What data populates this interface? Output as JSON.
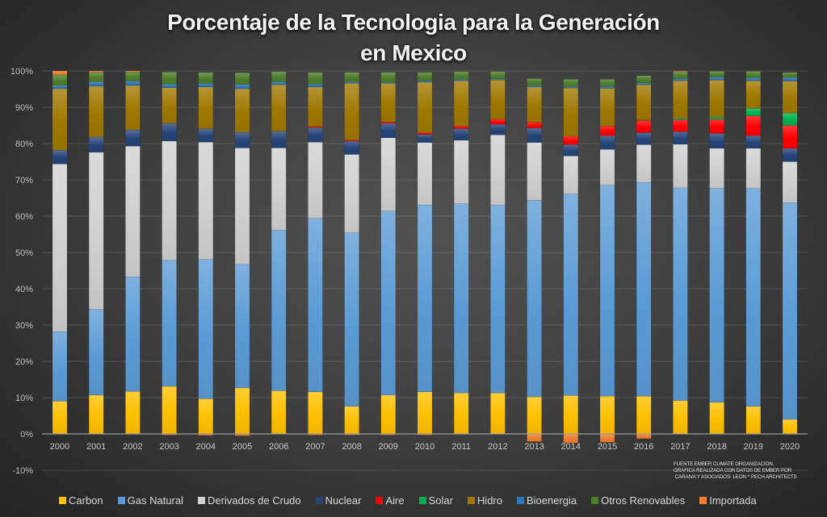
{
  "title": {
    "line1": "Porcentaje de la Tecnologia para la Generación",
    "line2": "en Mexico"
  },
  "chart_data": {
    "type": "bar",
    "stacking": "percent",
    "title": "Porcentaje de la Tecnologia para la Generación en Mexico",
    "xlabel": "",
    "ylabel": "",
    "ylim": [
      -10,
      100
    ],
    "yticks": [
      100,
      90,
      80,
      70,
      60,
      50,
      40,
      30,
      20,
      10,
      0,
      -10
    ],
    "ytick_labels": [
      "100%",
      "90%",
      "80%",
      "70%",
      "60%",
      "50%",
      "40%",
      "30%",
      "20%",
      "10%",
      "0%",
      "-10%"
    ],
    "grid": true,
    "legend": "bottom",
    "categories": [
      "2000",
      "2001",
      "2002",
      "2003",
      "2004",
      "2005",
      "2006",
      "2007",
      "2008",
      "2009",
      "2010",
      "2011",
      "2012",
      "2013",
      "2014",
      "2015",
      "2016",
      "2017",
      "2018",
      "2019",
      "2020"
    ],
    "series": [
      {
        "name": "Carbon",
        "color": "#FFC000",
        "values": [
          9.0,
          10.7,
          11.7,
          13.1,
          9.7,
          12.7,
          11.9,
          11.6,
          7.6,
          10.7,
          11.6,
          11.3,
          11.3,
          10.2,
          10.6,
          10.4,
          10.4,
          9.2,
          8.7,
          7.6,
          4.0
        ]
      },
      {
        "name": "Gas Natural",
        "color": "#5B9BD5",
        "values": [
          19.2,
          23.6,
          31.6,
          34.8,
          38.4,
          34.0,
          44.3,
          47.8,
          47.8,
          50.7,
          51.5,
          52.1,
          51.8,
          54.2,
          55.5,
          58.1,
          58.9,
          58.6,
          59.0,
          60.0,
          59.7
        ]
      },
      {
        "name": "Derivados de Crudo",
        "color": "#D0D0D0",
        "values": [
          46.2,
          43.3,
          36.0,
          32.8,
          32.3,
          32.1,
          22.6,
          21.0,
          21.6,
          20.2,
          17.2,
          17.5,
          19.3,
          15.9,
          10.5,
          9.9,
          10.4,
          12.0,
          11.0,
          11.1,
          11.3
        ]
      },
      {
        "name": "Nuclear",
        "color": "#264478",
        "values": [
          3.8,
          4.2,
          4.5,
          4.9,
          3.7,
          4.3,
          4.6,
          4.0,
          3.7,
          4.0,
          2.2,
          3.2,
          2.9,
          4.0,
          3.1,
          3.8,
          3.3,
          3.5,
          4.1,
          3.5,
          3.7
        ]
      },
      {
        "name": "Aire",
        "color": "#FF0000",
        "values": [
          0,
          0,
          0,
          0,
          0,
          0,
          0,
          0.3,
          0.3,
          0.4,
          0.5,
          0.7,
          1.4,
          1.6,
          2.3,
          2.6,
          3.4,
          3.3,
          3.9,
          5.4,
          6.3
        ]
      },
      {
        "name": "Solar",
        "color": "#00B050",
        "values": [
          0,
          0,
          0,
          0,
          0,
          0,
          0,
          0,
          0,
          0,
          0,
          0,
          0,
          0,
          0,
          0,
          0.1,
          0.4,
          0.6,
          2.1,
          3.4
        ]
      },
      {
        "name": "Hidro",
        "color": "#A07800",
        "values": [
          16.9,
          14.0,
          12.2,
          9.8,
          11.5,
          12.0,
          12.8,
          10.9,
          15.6,
          10.6,
          13.9,
          12.5,
          10.8,
          9.7,
          13.3,
          10.4,
          9.7,
          10.3,
          10.2,
          7.6,
          8.8
        ]
      },
      {
        "name": "Bioenergia",
        "color": "#2E75B6",
        "values": [
          0.9,
          1.2,
          1.2,
          1.0,
          1.0,
          1.2,
          0.8,
          0.8,
          0.4,
          0.3,
          0.4,
          0.4,
          0.3,
          0.4,
          0.4,
          0.5,
          0.5,
          0.6,
          0.8,
          0.8,
          1.0
        ]
      },
      {
        "name": "Otros Renovables",
        "color": "#4E7D2C",
        "values": [
          2.9,
          2.6,
          2.5,
          3.3,
          3.0,
          3.2,
          2.8,
          3.2,
          2.6,
          2.7,
          2.3,
          2.1,
          2.0,
          1.9,
          2.0,
          2.0,
          2.0,
          1.9,
          1.6,
          1.8,
          1.4
        ]
      },
      {
        "name": "Importada",
        "color": "#ED7D31",
        "values": [
          1.1,
          0.4,
          0.3,
          -0.3,
          -0.4,
          -0.5,
          0,
          -0.3,
          -0.3,
          -0.3,
          -0.3,
          0,
          0,
          -2.1,
          -2.5,
          -2.3,
          -1.3,
          0.2,
          0,
          0,
          0
        ]
      }
    ]
  },
  "footnote": {
    "line1": "FUENTE EMBER CLIMATE ORGANIZACION.",
    "line2": "GRAFICA REALIZADA CON DATOS DE EMBER POR",
    "line3": " CARAIVA Y ASOCIADOS- LEON ^ PECH ARCHITECTS"
  }
}
